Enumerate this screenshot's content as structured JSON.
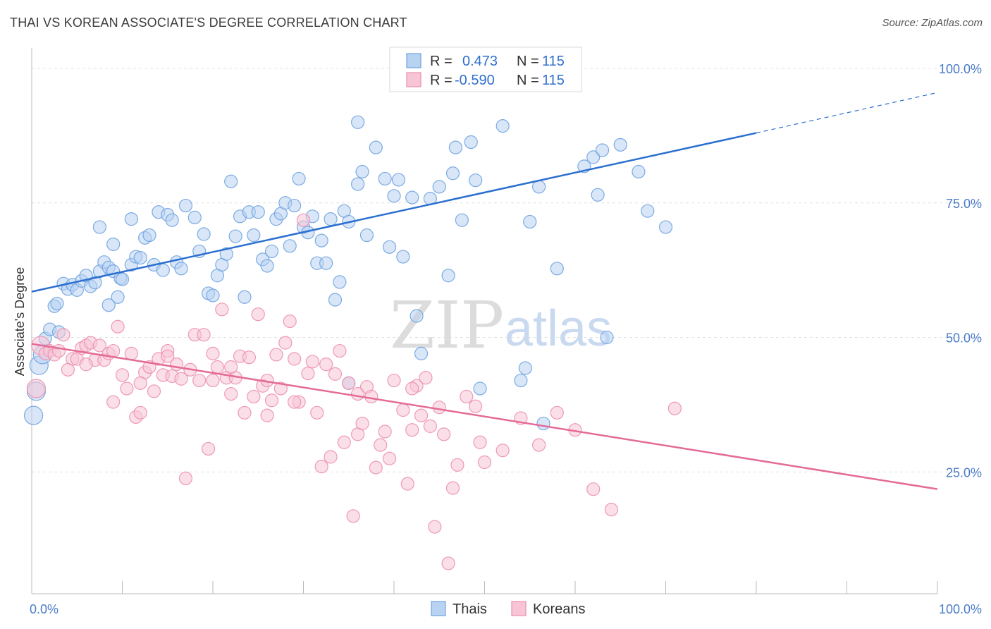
{
  "title": "THAI VS KOREAN ASSOCIATE'S DEGREE CORRELATION CHART",
  "source": "Source: ZipAtlas.com",
  "watermark": {
    "part1": "ZIP",
    "part2": "atlas"
  },
  "chart_data": {
    "type": "scatter",
    "ylabel": "Associate's Degree",
    "xlim": [
      0,
      100
    ],
    "ylim": [
      0,
      100
    ],
    "x_tick_labels": [
      "0.0%",
      "100.0%"
    ],
    "y_ticks": [
      {
        "value": 100,
        "label": "100.0%"
      },
      {
        "value": 75,
        "label": "75.0%"
      },
      {
        "value": 50,
        "label": "50.0%"
      },
      {
        "value": 25,
        "label": "25.0%"
      }
    ],
    "grid": true,
    "legend_position": "top-center",
    "stats": [
      {
        "r_label": "R =",
        "r": "0.473",
        "n_label": "N =",
        "n": "115"
      },
      {
        "r_label": "R =",
        "r": "-0.590",
        "n_label": "N =",
        "n": "115"
      }
    ],
    "series": [
      {
        "name": "Thais",
        "color": "#6fa3e0",
        "fill": "#b8d2f2",
        "trend": {
          "x0": 0,
          "y0": 58.5,
          "x1": 80,
          "y1": 88.0,
          "dash_to_x": 100,
          "dash_to_y": 95.5,
          "color": "#2b6fd0"
        },
        "points": [
          [
            0.2,
            35.5
          ],
          [
            0.5,
            40
          ],
          [
            0.8,
            44.8
          ],
          [
            1.2,
            46.8
          ],
          [
            1.5,
            49.8
          ],
          [
            2,
            51.5
          ],
          [
            3,
            51
          ],
          [
            2.5,
            55.8
          ],
          [
            2.8,
            56.3
          ],
          [
            3.5,
            60
          ],
          [
            4,
            59
          ],
          [
            4.5,
            59.8
          ],
          [
            5,
            58.8
          ],
          [
            5.5,
            60.5
          ],
          [
            6,
            61.5
          ],
          [
            6.5,
            59.5
          ],
          [
            7,
            60.2
          ],
          [
            7.5,
            62.3
          ],
          [
            8,
            64
          ],
          [
            8.5,
            63
          ],
          [
            9,
            62.3
          ],
          [
            9.5,
            57.5
          ],
          [
            9.8,
            61
          ],
          [
            10,
            60.8
          ],
          [
            7.5,
            70.5
          ],
          [
            8.5,
            56
          ],
          [
            9,
            67.3
          ],
          [
            11,
            63.5
          ],
          [
            11.5,
            65
          ],
          [
            12,
            64.8
          ],
          [
            12.5,
            68.5
          ],
          [
            13,
            69
          ],
          [
            13.5,
            63.5
          ],
          [
            14,
            73.3
          ],
          [
            14.5,
            62.5
          ],
          [
            15,
            72.8
          ],
          [
            15.5,
            71.8
          ],
          [
            16,
            64
          ],
          [
            16.5,
            62.8
          ],
          [
            17,
            74.5
          ],
          [
            18,
            72.3
          ],
          [
            18.5,
            66
          ],
          [
            19,
            69.2
          ],
          [
            19.5,
            58.2
          ],
          [
            20,
            57.8
          ],
          [
            20.5,
            61.5
          ],
          [
            21,
            63.5
          ],
          [
            21.5,
            65.5
          ],
          [
            22,
            79
          ],
          [
            22.5,
            68.8
          ],
          [
            23,
            72.5
          ],
          [
            23.5,
            57.5
          ],
          [
            24,
            73.3
          ],
          [
            24.5,
            69
          ],
          [
            25,
            73.3
          ],
          [
            25.5,
            64.5
          ],
          [
            26,
            63.3
          ],
          [
            26.5,
            66
          ],
          [
            27,
            72
          ],
          [
            27.5,
            73
          ],
          [
            28,
            75
          ],
          [
            28.5,
            67
          ],
          [
            29,
            74.5
          ],
          [
            29.5,
            79.5
          ],
          [
            30,
            70.5
          ],
          [
            30.5,
            69.5
          ],
          [
            31,
            72.5
          ],
          [
            31.5,
            63.8
          ],
          [
            32,
            68
          ],
          [
            32.5,
            63.8
          ],
          [
            33,
            72
          ],
          [
            33.5,
            57
          ],
          [
            34,
            60.3
          ],
          [
            34.5,
            73.5
          ],
          [
            35,
            71.5
          ],
          [
            36,
            78.5
          ],
          [
            36.5,
            80.8
          ],
          [
            37,
            69
          ],
          [
            38,
            85.3
          ],
          [
            39,
            79.5
          ],
          [
            39.5,
            66.8
          ],
          [
            40,
            76.3
          ],
          [
            40.5,
            79.3
          ],
          [
            41,
            65
          ],
          [
            42,
            76
          ],
          [
            42.5,
            54
          ],
          [
            43,
            47
          ],
          [
            44,
            75.8
          ],
          [
            45,
            78
          ],
          [
            46,
            61.5
          ],
          [
            46.5,
            80.5
          ],
          [
            46.8,
            85.3
          ],
          [
            47.5,
            71.8
          ],
          [
            48.5,
            86.3
          ],
          [
            49,
            79.2
          ],
          [
            49.5,
            40.5
          ],
          [
            52,
            89.3
          ],
          [
            54,
            42
          ],
          [
            54.5,
            44.3
          ],
          [
            55,
            71.5
          ],
          [
            56,
            78
          ],
          [
            56.5,
            34
          ],
          [
            58,
            62.8
          ],
          [
            61,
            81.8
          ],
          [
            62,
            83.5
          ],
          [
            62.5,
            76.5
          ],
          [
            63,
            84.8
          ],
          [
            63.5,
            50
          ],
          [
            65,
            85.8
          ],
          [
            67,
            80.8
          ],
          [
            68,
            73.5
          ],
          [
            70,
            70.5
          ],
          [
            35,
            41.5
          ],
          [
            36,
            90
          ],
          [
            11,
            72
          ]
        ]
      },
      {
        "name": "Koreans",
        "color": "#ec8fae",
        "fill": "#f7c5d6",
        "trend": {
          "x0": 0,
          "y0": 48.8,
          "x1": 100,
          "y1": 21.8,
          "color": "#e46a97"
        },
        "points": [
          [
            0.5,
            40.5
          ],
          [
            1,
            48.5
          ],
          [
            1.5,
            47
          ],
          [
            2,
            47.5
          ],
          [
            2.5,
            46.8
          ],
          [
            3,
            47.5
          ],
          [
            3.5,
            50.5
          ],
          [
            4,
            44
          ],
          [
            4.5,
            46
          ],
          [
            5,
            46
          ],
          [
            5.5,
            48
          ],
          [
            6,
            48.5
          ],
          [
            6.5,
            49
          ],
          [
            7,
            45.8
          ],
          [
            7.5,
            48.5
          ],
          [
            8,
            45.8
          ],
          [
            8.5,
            47
          ],
          [
            9,
            38
          ],
          [
            9.5,
            52
          ],
          [
            10,
            43
          ],
          [
            10.5,
            40.5
          ],
          [
            11,
            47
          ],
          [
            11.5,
            35.2
          ],
          [
            12,
            36
          ],
          [
            12.5,
            43.5
          ],
          [
            13,
            44.5
          ],
          [
            13.5,
            40
          ],
          [
            14,
            46
          ],
          [
            14.5,
            43
          ],
          [
            15,
            47.5
          ],
          [
            15.5,
            42.8
          ],
          [
            16,
            45
          ],
          [
            16.5,
            42.3
          ],
          [
            17,
            23.8
          ],
          [
            17.5,
            44
          ],
          [
            18,
            50.5
          ],
          [
            18.5,
            42
          ],
          [
            19,
            50.5
          ],
          [
            19.5,
            29.3
          ],
          [
            20,
            47
          ],
          [
            20.5,
            44.5
          ],
          [
            21,
            55.2
          ],
          [
            21.5,
            42.5
          ],
          [
            22,
            39.5
          ],
          [
            22.5,
            42.5
          ],
          [
            23,
            46.5
          ],
          [
            23.5,
            36
          ],
          [
            24,
            46.3
          ],
          [
            24.5,
            39
          ],
          [
            25,
            54.3
          ],
          [
            25.5,
            41
          ],
          [
            26,
            42
          ],
          [
            26.5,
            38.3
          ],
          [
            27,
            46.8
          ],
          [
            27.5,
            40.5
          ],
          [
            28,
            49
          ],
          [
            28.5,
            53
          ],
          [
            29,
            46
          ],
          [
            29.5,
            38
          ],
          [
            30,
            71.8
          ],
          [
            30.5,
            43.3
          ],
          [
            31,
            45.5
          ],
          [
            31.5,
            36
          ],
          [
            32,
            26
          ],
          [
            32.5,
            45
          ],
          [
            33,
            27.8
          ],
          [
            33.5,
            43.2
          ],
          [
            34,
            47.5
          ],
          [
            34.5,
            30.5
          ],
          [
            35,
            41.5
          ],
          [
            35.5,
            16.8
          ],
          [
            36,
            32
          ],
          [
            36.5,
            34
          ],
          [
            37,
            40.8
          ],
          [
            37.5,
            39
          ],
          [
            38,
            25.8
          ],
          [
            38.5,
            30
          ],
          [
            39,
            32.5
          ],
          [
            39.5,
            27.5
          ],
          [
            40,
            42
          ],
          [
            41,
            36.5
          ],
          [
            41.5,
            22.8
          ],
          [
            42,
            32.8
          ],
          [
            42.5,
            41
          ],
          [
            43,
            35.5
          ],
          [
            43.5,
            42.5
          ],
          [
            44,
            33.5
          ],
          [
            44.5,
            14.8
          ],
          [
            45,
            37
          ],
          [
            45.5,
            32
          ],
          [
            46,
            8
          ],
          [
            46.5,
            22
          ],
          [
            47,
            26.3
          ],
          [
            48,
            39
          ],
          [
            49,
            37.2
          ],
          [
            49.5,
            30.5
          ],
          [
            50,
            26.8
          ],
          [
            52,
            29
          ],
          [
            54,
            35
          ],
          [
            56,
            30
          ],
          [
            58,
            36
          ],
          [
            60,
            32.8
          ],
          [
            62,
            21.8
          ],
          [
            64,
            18
          ],
          [
            71,
            36.8
          ],
          [
            12,
            41.5
          ],
          [
            6,
            45
          ],
          [
            15,
            46.5
          ],
          [
            20,
            42
          ],
          [
            29,
            38
          ],
          [
            36,
            39.5
          ],
          [
            42,
            40.5
          ],
          [
            26,
            35.5
          ],
          [
            22,
            44.5
          ],
          [
            9,
            47.5
          ]
        ]
      }
    ]
  }
}
